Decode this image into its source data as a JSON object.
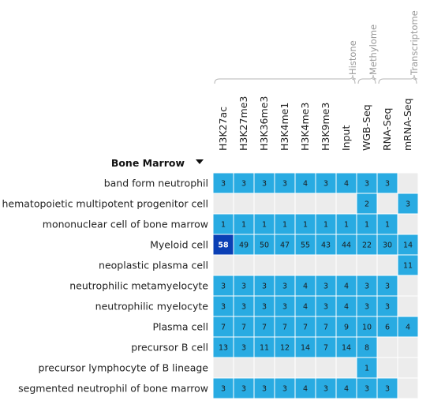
{
  "group_title": "Bone Marrow",
  "assay_groups": [
    {
      "label": "Histone",
      "start": 0,
      "end": 6
    },
    {
      "label": "Methylome",
      "start": 7,
      "end": 7
    },
    {
      "label": "Transcriptome",
      "start": 8,
      "end": 9
    }
  ],
  "columns": [
    "H3K27ac",
    "H3K27me3",
    "H3K36me3",
    "H3K4me1",
    "H3K4me3",
    "H3K9me3",
    "Input",
    "WGB-Seq",
    "RNA-Seq",
    "mRNA-Seq"
  ],
  "rows": [
    {
      "label": "band form neutrophil",
      "values": [
        3,
        3,
        3,
        3,
        4,
        3,
        4,
        3,
        3,
        null
      ]
    },
    {
      "label": "hematopoietic multipotent progenitor cell",
      "values": [
        null,
        null,
        null,
        null,
        null,
        null,
        null,
        2,
        null,
        3
      ]
    },
    {
      "label": "mononuclear cell of bone marrow",
      "values": [
        1,
        1,
        1,
        1,
        1,
        1,
        1,
        1,
        1,
        null
      ]
    },
    {
      "label": "Myeloid cell",
      "values": [
        58,
        49,
        50,
        47,
        55,
        43,
        44,
        22,
        30,
        14
      ]
    },
    {
      "label": "neoplastic plasma cell",
      "values": [
        null,
        null,
        null,
        null,
        null,
        null,
        null,
        null,
        null,
        11
      ]
    },
    {
      "label": "neutrophilic metamyelocyte",
      "values": [
        3,
        3,
        3,
        3,
        4,
        3,
        4,
        3,
        3,
        null
      ]
    },
    {
      "label": "neutrophilic myelocyte",
      "values": [
        3,
        3,
        3,
        3,
        4,
        3,
        4,
        3,
        3,
        null
      ]
    },
    {
      "label": "Plasma cell",
      "values": [
        7,
        7,
        7,
        7,
        7,
        7,
        9,
        10,
        6,
        4
      ]
    },
    {
      "label": "precursor B cell",
      "values": [
        13,
        3,
        11,
        12,
        14,
        7,
        14,
        8,
        null,
        null
      ]
    },
    {
      "label": "precursor lymphocyte of B lineage",
      "values": [
        null,
        null,
        null,
        null,
        null,
        null,
        null,
        1,
        null,
        null
      ]
    },
    {
      "label": "segmented neutrophil of bone marrow",
      "values": [
        3,
        3,
        3,
        3,
        4,
        3,
        4,
        3,
        3,
        null
      ]
    }
  ],
  "colors": {
    "cell": "#29abe2",
    "highlight_cell": "#0a3fb5",
    "empty_cell": "#ececec",
    "cell_text": "#1a1a1a",
    "highlight_text": "#ffffff",
    "grid": "#ffffff"
  }
}
